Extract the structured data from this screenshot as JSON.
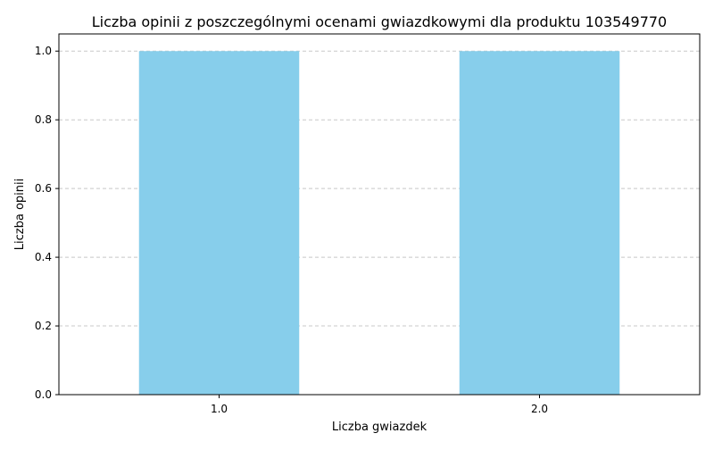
{
  "chart_data": {
    "type": "bar",
    "title": "Liczba opinii z poszczególnymi ocenami gwiazdkowymi dla produktu 103549770",
    "xlabel": "Liczba gwiazdek",
    "ylabel": "Liczba opinii",
    "categories": [
      "1.0",
      "2.0"
    ],
    "values": [
      1,
      1
    ],
    "ylim": [
      0,
      1.05
    ],
    "yticks": [
      0.0,
      0.2,
      0.4,
      0.6,
      0.8,
      1.0
    ],
    "ytick_labels": [
      "0.0",
      "0.2",
      "0.4",
      "0.6",
      "0.8",
      "1.0"
    ],
    "bar_color": "#87ceeb",
    "grid": "y-dashed",
    "grid_color": "#c8c8c8",
    "legend": "none"
  }
}
